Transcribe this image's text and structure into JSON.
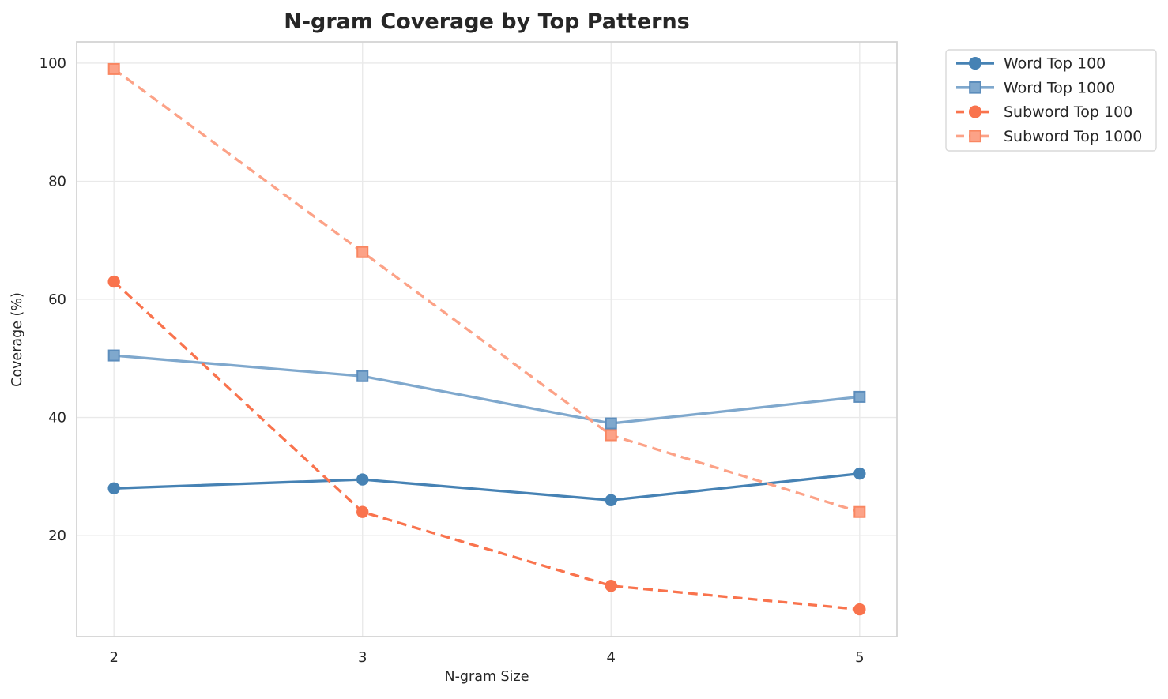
{
  "chart_data": {
    "type": "line",
    "title": "N-gram Coverage by Top Patterns",
    "xlabel": "N-gram Size",
    "ylabel": "Coverage (%)",
    "x": [
      2,
      3,
      4,
      5
    ],
    "x_ticks": [
      "2",
      "3",
      "4",
      "5"
    ],
    "y_ticks": [
      20,
      40,
      60,
      80,
      100
    ],
    "xlim": [
      1.85,
      5.15
    ],
    "ylim": [
      2.9,
      103.6
    ],
    "grid": true,
    "legend_position": "outside-top-right",
    "series": [
      {
        "name": "Word Top 100",
        "values": [
          28,
          29.5,
          26,
          30.5
        ],
        "color": "#4682B4",
        "marker": "circle",
        "marker_edge": "#4682B4",
        "line_style": "solid"
      },
      {
        "name": "Word Top 1000",
        "values": [
          50.5,
          47,
          39,
          43.5
        ],
        "color": "#7FA8CD",
        "marker": "square",
        "marker_edge": "#5C8DBC",
        "line_style": "solid"
      },
      {
        "name": "Subword Top 100",
        "values": [
          63,
          24,
          11.5,
          7.5
        ],
        "color": "#F9734D",
        "marker": "circle",
        "marker_edge": "#F9734D",
        "line_style": "dashed"
      },
      {
        "name": "Subword Top 1000",
        "values": [
          99,
          68,
          37,
          24
        ],
        "color": "#FCA287",
        "marker": "square",
        "marker_edge": "#F98661",
        "line_style": "dashed"
      }
    ]
  },
  "colors": {
    "background": "#FFFFFF",
    "grid": "#E9E9E9",
    "spine": "#D4D4D4",
    "text": "#262626",
    "legend_border": "#D9D9D9",
    "legend_background": "#FFFFFF"
  }
}
